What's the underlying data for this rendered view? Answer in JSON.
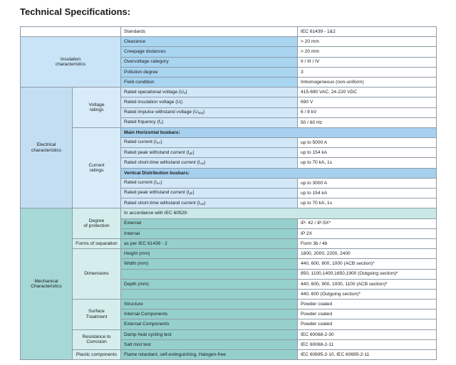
{
  "title": "Technical Specifications:",
  "table": {
    "standards": {
      "param": "Standards",
      "value": "IEC 61439 - 1&2"
    },
    "sections": [
      {
        "label": [
          "Insulation",
          "characteristics"
        ],
        "rows": [
          {
            "param": "Clearance",
            "value": "> 20 mm"
          },
          {
            "param": "Creepage distances",
            "value": "> 20 mm"
          },
          {
            "param": "Overvoltage category",
            "value": "II / III / IV"
          },
          {
            "param": "Pollution degree",
            "value": "3"
          },
          {
            "param": "Field condition",
            "value": "Inhomogeneous (non-uniform)"
          }
        ]
      },
      {
        "label": [
          "Electrical",
          "characteristics"
        ],
        "groups": [
          {
            "label": [
              "Voltage",
              "ratings"
            ],
            "rows": [
              {
                "param": {
                  "text": "Rated operational voltage (U",
                  "sub": "e",
                  "end": ")"
                },
                "value": "415-690 VAC, 24-220 VDC"
              },
              {
                "param": {
                  "text": "Rated insulation voltage (U",
                  "sub": "i",
                  "end": ")"
                },
                "value": "690 V"
              },
              {
                "param": {
                  "text": "Rated impulse withstand voltage (U",
                  "sub": "imp",
                  "end": ")"
                },
                "value": "6 / 8 kV"
              },
              {
                "param": {
                  "text": "Rated frquency (f",
                  "sub": "n",
                  "end": ")"
                },
                "value": "50 / 60 Hz"
              }
            ]
          },
          {
            "label": [
              "Current",
              "ratings"
            ],
            "rows": [
              {
                "heading": "Main Horizontal busbars:"
              },
              {
                "param": {
                  "text": "Rated current (I",
                  "sub": "nA",
                  "end": ")"
                },
                "value": "up to 5000 A"
              },
              {
                "param": {
                  "text": "Rated peak withstand current (I",
                  "sub": "pk",
                  "end": ")"
                },
                "value": "up to 154 kA"
              },
              {
                "param": {
                  "text": "Rated short-time withstand current (I",
                  "sub": "cw",
                  "end": ")"
                },
                "value": "up to 70 kA, 1s"
              },
              {
                "heading": "Vertical Distribution busbars:"
              },
              {
                "param": {
                  "text": "Rated current (I",
                  "sub": "nA",
                  "end": ")"
                },
                "value": "up to 3000 A"
              },
              {
                "param": {
                  "text": "Rated peak withstand current (I",
                  "sub": "pk",
                  "end": ")"
                },
                "value": "up to 154 kA"
              },
              {
                "param": {
                  "text": "Rated short-time withstand current (I",
                  "sub": "cw",
                  "end": ")"
                },
                "value": "up to 70 kA, 1s"
              }
            ]
          }
        ]
      },
      {
        "label": [
          "Mechanical",
          "Characteristics"
        ],
        "groups": [
          {
            "label": [
              "Degree",
              "of protection"
            ],
            "rows": [
              {
                "heading": "In accordance with IEC 60529:"
              },
              {
                "param": "External",
                "value": "IP- 42 / IP-5X*"
              },
              {
                "param": "Internal",
                "value": "IP 2X"
              }
            ]
          },
          {
            "label": [
              "Forms of separation"
            ],
            "rows": [
              {
                "param": "as per IEC 61439 - 2",
                "value": "Form 3b / 4b"
              }
            ]
          },
          {
            "label": [
              "Dimensions"
            ],
            "rows": [
              {
                "param": "Height (mm)",
                "value": "1800, 2000, 2200, 2400"
              },
              {
                "param": "Width (mm)",
                "value": "440, 600, 800, 1000 (ACB section)*"
              },
              {
                "value": "850, 1100,1400,1650,1900 (Outgoing section)*"
              },
              {
                "param": "Depth (mm)",
                "value": "440, 600, 900, 1000, 1100 (ACB section)*"
              },
              {
                "value": "440, 600 (Outgoing section)*"
              }
            ]
          },
          {
            "label": [
              "Surface",
              "Treatment"
            ],
            "rows": [
              {
                "param": "Structure",
                "value": "Powder coated"
              },
              {
                "param": "Internal Components",
                "value": "Powder coated"
              },
              {
                "param": "External Components",
                "value": "Powder coated"
              }
            ]
          },
          {
            "label": [
              "Resistance to",
              "Corrosion"
            ],
            "rows": [
              {
                "param": "Damp heat cycling test",
                "value": "IEC 60068-2-30"
              },
              {
                "param": "Salt mist test",
                "value": "IEC 60068-2-11"
              }
            ]
          },
          {
            "label": [
              "Plastic components"
            ],
            "rows": [
              {
                "param": "Flame retardant, self-extinguishing, Halogen-free",
                "value": "IEC 60695-2-10, IEC 60695-2-11"
              }
            ]
          }
        ]
      }
    ]
  }
}
